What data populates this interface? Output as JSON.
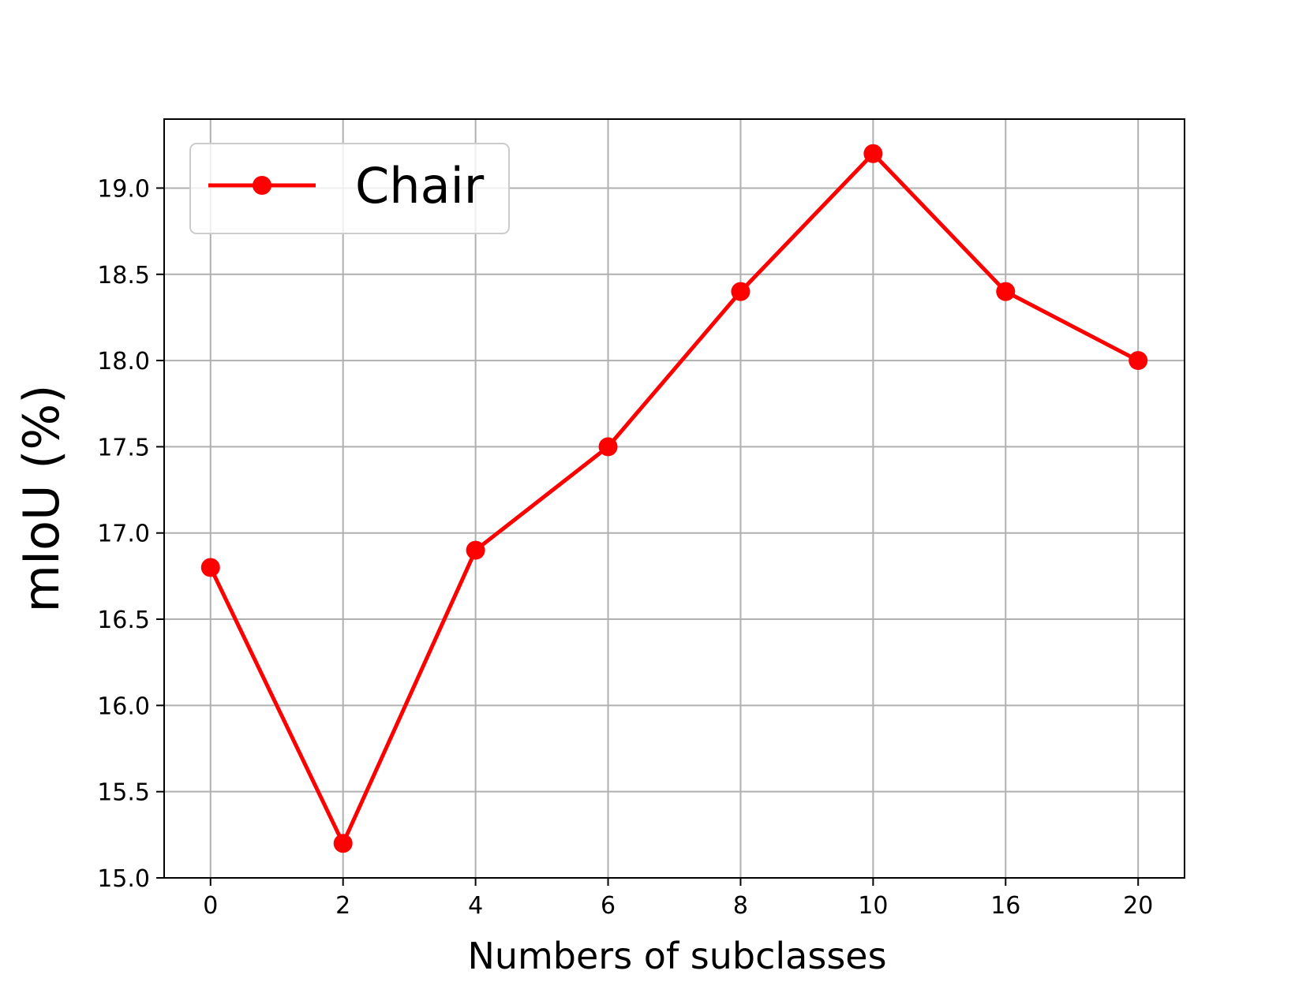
{
  "chart_data": {
    "type": "line",
    "categories": [
      "0",
      "2",
      "4",
      "6",
      "8",
      "10",
      "16",
      "20"
    ],
    "series": [
      {
        "name": "Chair",
        "color": "#ff0000",
        "marker": "circle",
        "values": [
          16.8,
          15.2,
          16.9,
          17.5,
          18.4,
          19.2,
          18.4,
          18.0
        ]
      }
    ],
    "xlabel": "Numbers of subclasses",
    "ylabel": "mIoU (%)",
    "ylim": [
      15.0,
      19.4
    ],
    "yticks": [
      "15.0",
      "15.5",
      "16.0",
      "16.5",
      "17.0",
      "17.5",
      "18.0",
      "18.5",
      "19.0"
    ],
    "grid": true,
    "legend_position": "top-left"
  }
}
